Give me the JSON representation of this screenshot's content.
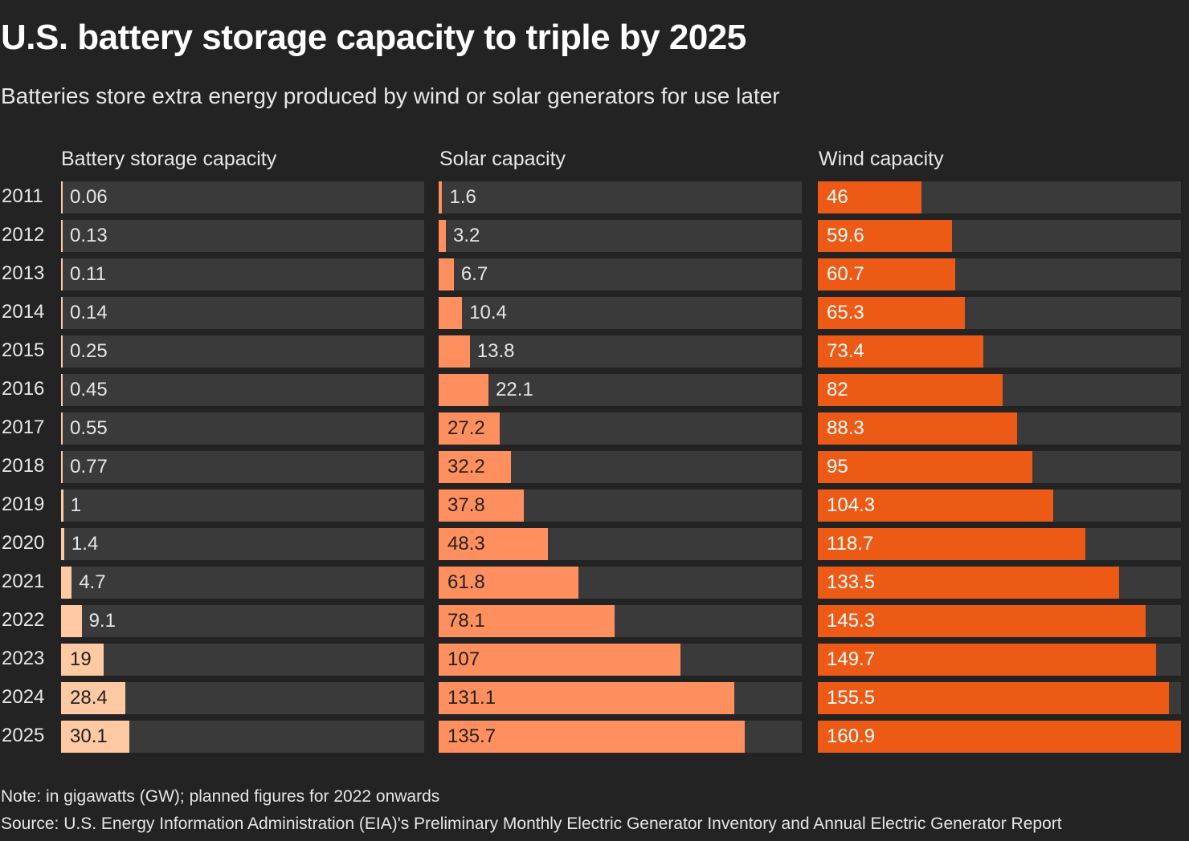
{
  "chart_data": {
    "type": "bar",
    "orientation": "horizontal",
    "title": "U.S. battery storage capacity to triple by 2025",
    "subtitle": "Batteries store extra energy produced by wind or solar generators for use later",
    "categories": [
      "2011",
      "2012",
      "2013",
      "2014",
      "2015",
      "2016",
      "2017",
      "2018",
      "2019",
      "2020",
      "2021",
      "2022",
      "2023",
      "2024",
      "2025"
    ],
    "xlim": [
      0,
      160.9
    ],
    "grid": false,
    "series": [
      {
        "name": "Battery storage capacity",
        "color": "#ffc9a3",
        "label_color": "#222222",
        "values": [
          0.06,
          0.13,
          0.11,
          0.14,
          0.25,
          0.45,
          0.55,
          0.77,
          1,
          1.4,
          4.7,
          9.1,
          19,
          28.4,
          30.1
        ],
        "labels": [
          "0.06",
          "0.13",
          "0.11",
          "0.14",
          "0.25",
          "0.45",
          "0.55",
          "0.77",
          "1",
          "1.4",
          "4.7",
          "9.1",
          "19",
          "28.4",
          "30.1"
        ]
      },
      {
        "name": "Solar capacity",
        "color": "#ff8f5e",
        "label_color": "#222222",
        "values": [
          1.6,
          3.2,
          6.7,
          10.4,
          13.8,
          22.1,
          27.2,
          32.2,
          37.8,
          48.3,
          61.8,
          78.1,
          107,
          131.1,
          135.7
        ],
        "labels": [
          "1.6",
          "3.2",
          "6.7",
          "10.4",
          "13.8",
          "22.1",
          "27.2",
          "32.2",
          "37.8",
          "48.3",
          "61.8",
          "78.1",
          "107",
          "131.1",
          "135.7"
        ]
      },
      {
        "name": "Wind capacity",
        "color": "#ec5a16",
        "label_color": "#ffffff",
        "values": [
          46,
          59.6,
          60.7,
          65.3,
          73.4,
          82,
          88.3,
          95,
          104.3,
          118.7,
          133.5,
          145.3,
          149.7,
          155.5,
          160.9
        ],
        "labels": [
          "46",
          "59.6",
          "60.7",
          "65.3",
          "73.4",
          "82",
          "88.3",
          "95",
          "104.3",
          "118.7",
          "133.5",
          "145.3",
          "149.7",
          "155.5",
          "160.9"
        ]
      }
    ],
    "track_color": "#3a3a3a",
    "background": "#232323",
    "note": "Note: in gigawatts (GW); planned figures for 2022 onwards",
    "source": "Source: U.S. Energy Information Administration (EIA)'s Preliminary Monthly Electric Generator Inventory and Annual Electric Generator Report"
  }
}
